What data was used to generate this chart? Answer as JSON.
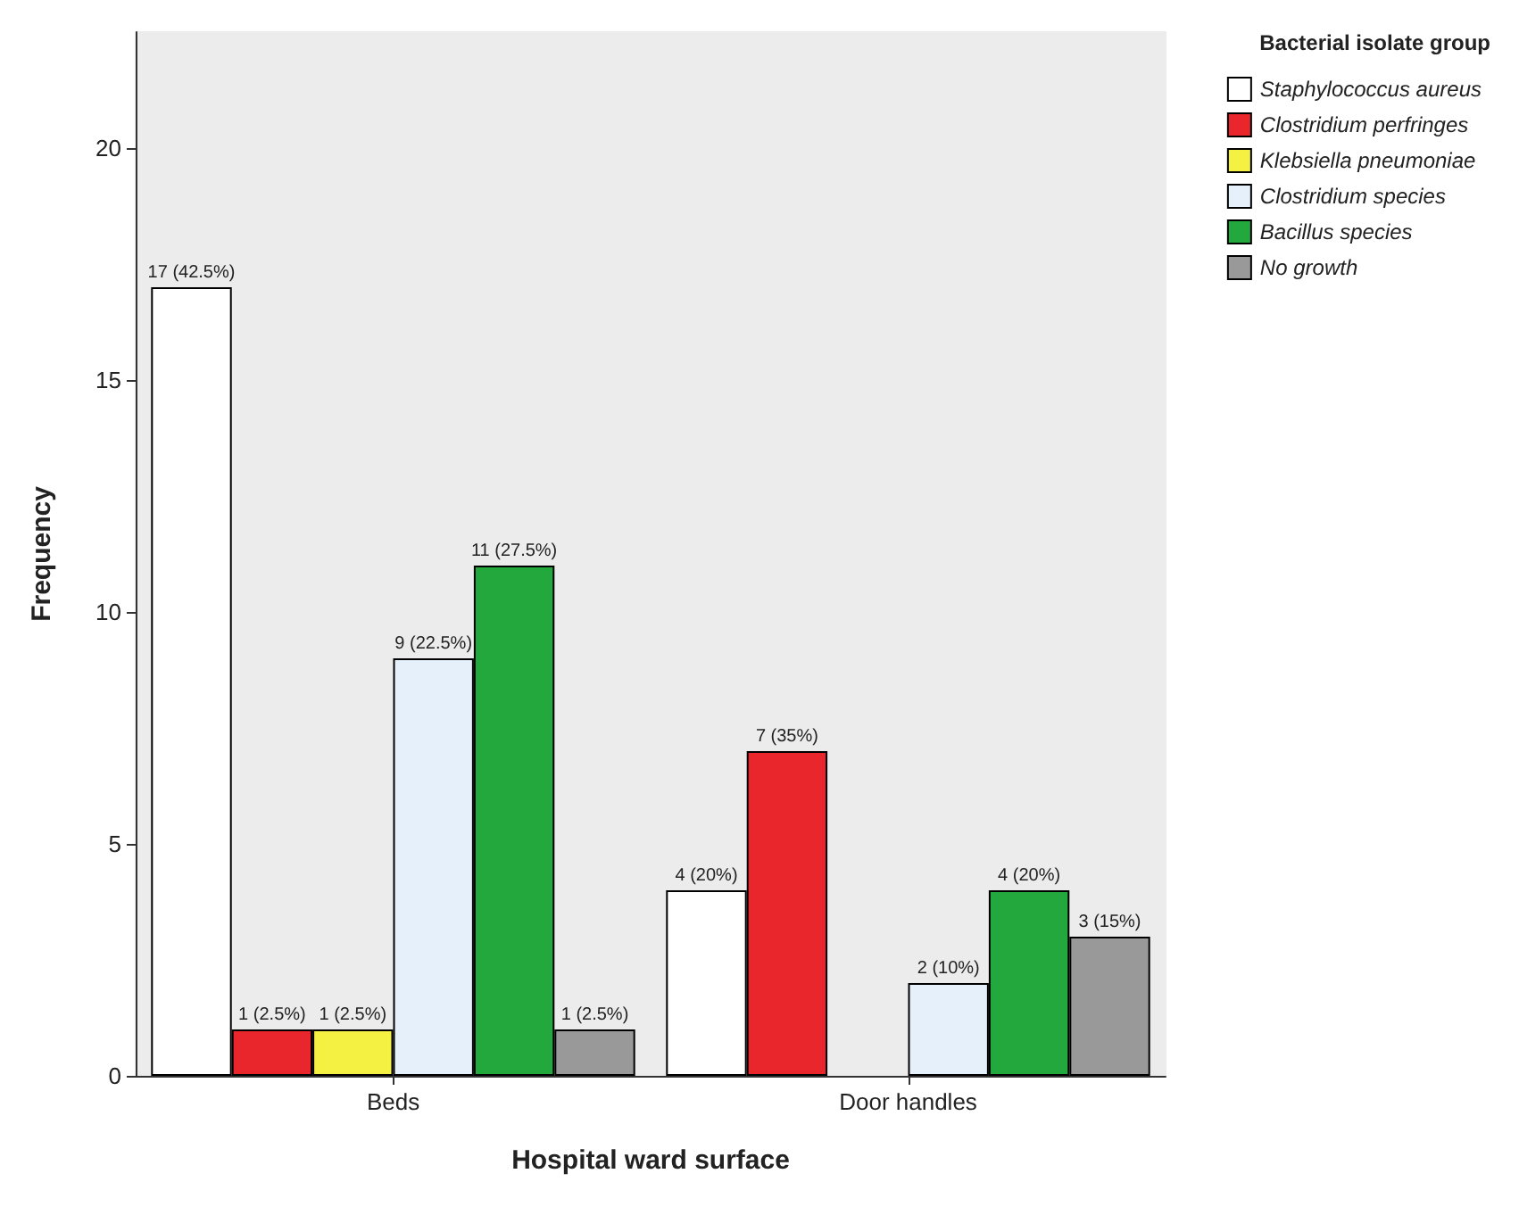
{
  "chart_data": {
    "type": "bar",
    "xlabel": "Hospital ward surface",
    "ylabel": "Frequency",
    "legend_title": "Bacterial isolate group",
    "categories": [
      "Beds",
      "Door handles"
    ],
    "series": [
      {
        "name": "Staphylococcus aureus",
        "color": "#ffffff",
        "values": [
          17,
          4
        ],
        "value_labels": [
          "17 (42.5%)",
          "4 (20%)"
        ]
      },
      {
        "name": "Clostridium perfringes",
        "color": "#e8262b",
        "values": [
          1,
          7
        ],
        "value_labels": [
          "1 (2.5%)",
          "7 (35%)"
        ]
      },
      {
        "name": "Klebsiella pneumoniae",
        "color": "#f4f142",
        "values": [
          1,
          null
        ],
        "value_labels": [
          "1 (2.5%)",
          null
        ]
      },
      {
        "name": "Clostridium species",
        "color": "#e6f0fb",
        "values": [
          9,
          2
        ],
        "value_labels": [
          "9 (22.5%)",
          "2 (10%)"
        ]
      },
      {
        "name": "Bacillus species",
        "color": "#22a83c",
        "values": [
          11,
          4
        ],
        "value_labels": [
          "11 (27.5%)",
          "4 (20%)"
        ]
      },
      {
        "name": "No growth",
        "color": "#999999",
        "values": [
          1,
          3
        ],
        "value_labels": [
          "1 (2.5%)",
          "3 (15%)"
        ]
      }
    ],
    "ylim": [
      0,
      22.5
    ],
    "yticks": [
      0,
      5,
      10,
      15,
      20
    ],
    "grid": false,
    "legend": "top right"
  }
}
